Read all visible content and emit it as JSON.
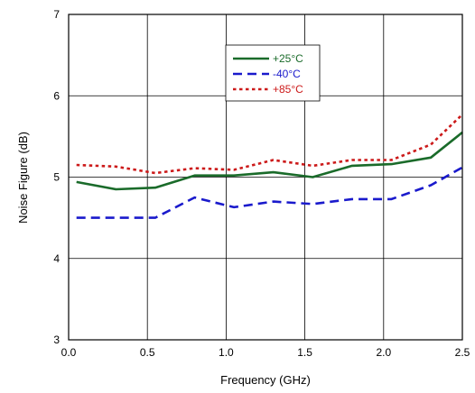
{
  "chart_data": {
    "type": "line",
    "title": "",
    "xlabel": "Frequency (GHz)",
    "ylabel": "Noise Figure (dB)",
    "xlim": [
      0,
      2.5
    ],
    "ylim": [
      3,
      7
    ],
    "x_ticks": [
      "0.0",
      "0.5",
      "1.0",
      "1.5",
      "2.0",
      "2.5"
    ],
    "y_ticks": [
      "3",
      "4",
      "5",
      "6",
      "7"
    ],
    "grid": true,
    "legend_position": "top-center",
    "series": [
      {
        "name": "+25°C",
        "color": "#1a6b2a",
        "style": "solid",
        "x": [
          0.05,
          0.3,
          0.55,
          0.8,
          1.05,
          1.3,
          1.55,
          1.8,
          2.05,
          2.3,
          2.5
        ],
        "y": [
          4.94,
          4.85,
          4.87,
          5.02,
          5.02,
          5.06,
          5.0,
          5.14,
          5.16,
          5.24,
          5.55
        ]
      },
      {
        "name": "-40°C",
        "color": "#1a1acc",
        "style": "dashed",
        "x": [
          0.05,
          0.3,
          0.55,
          0.8,
          1.05,
          1.3,
          1.55,
          1.8,
          2.05,
          2.3,
          2.5
        ],
        "y": [
          4.5,
          4.5,
          4.5,
          4.75,
          4.63,
          4.7,
          4.67,
          4.73,
          4.73,
          4.9,
          5.12
        ]
      },
      {
        "name": "+85°C",
        "color": "#cc1a1a",
        "style": "dotted",
        "x": [
          0.05,
          0.3,
          0.55,
          0.8,
          1.05,
          1.3,
          1.55,
          1.8,
          2.05,
          2.3,
          2.5
        ],
        "y": [
          5.15,
          5.13,
          5.05,
          5.11,
          5.09,
          5.21,
          5.14,
          5.21,
          5.21,
          5.4,
          5.77
        ]
      }
    ]
  }
}
